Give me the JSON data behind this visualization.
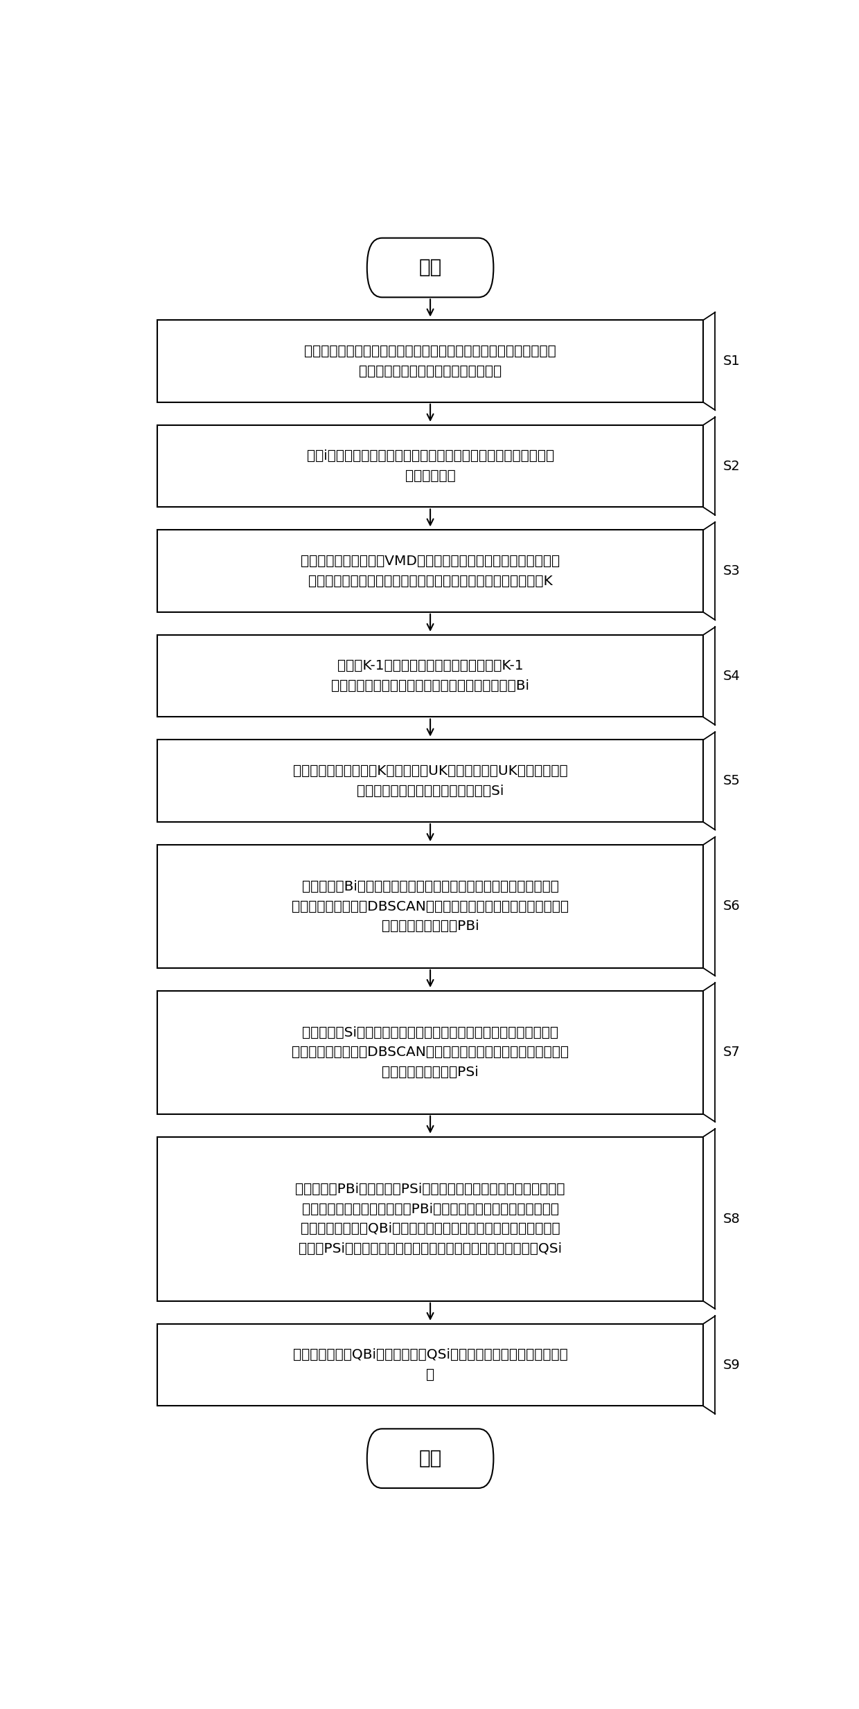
{
  "background_color": "#ffffff",
  "fig_width": 12.4,
  "fig_height": 24.68,
  "dpi": 100,
  "start_text": "开始",
  "end_text": "结束",
  "steps": [
    {
      "tag": "S1",
      "text": "采集机车或动检车的轨道电路的感应信号，依据载频交替规则将其划\n分为多个轨道电路区段的移频感应信号",
      "nlines": 2
    },
    {
      "tag": "S2",
      "text": "对第i个轨道电路区段的移频感应信号进行滑动滤波去噪预处理得到\n去噪后的信号",
      "nlines": 2
    },
    {
      "tag": "S3",
      "text": "采用变分模态滤波分解VMD对去噪后的信号进行自适应分解，得到\n模态分量，并通过信息熵和多维标度法确定信号的最优分解层数K",
      "nlines": 2
    },
    {
      "tag": "S4",
      "text": "计算前K-1层模态分量的峭度值，并根据前K-1\n层模态分量的峭度值计算移频感应信号的波动特征Bi",
      "nlines": 2
    },
    {
      "tag": "S5",
      "text": "选取含有趋势分量的第K层模态分量UK，将模态分量UK运用最小二乘\n法拟合得到移频感应信号的衰减特征Si",
      "nlines": 2
    },
    {
      "tag": "S6",
      "text": "将波动特征Bi添加到移频感应信号对应的轨道电路区段的历史波动特\n征集，采用密度聚类DBSCAN算法计算得到移频感应信号对应的轨道\n电路区段的波动系数PBi",
      "nlines": 3
    },
    {
      "tag": "S7",
      "text": "将衰减特征Si添加到移频感应信号对应的轨道电路区段的历史衰减特\n征集，采用密度聚类DBSCAN算法计算得到移频感应信号对应的轨道\n电路区段的衰减系数PSi",
      "nlines": 3
    },
    {
      "tag": "S8",
      "text": "将波动系数PBi和衰减系数PSi进行归一化处理，通过波动系数评分函\n数和归一化处理后的波动系数PBi计算移频感应信号对应的轨道电路\n区段的波动评分值QBi，通过衰减系数评分函数和归一化处理后的衰\n减系数PSi计算移频感应信号对应的轨道电路区段的衰减评分值QSi",
      "nlines": 4
    },
    {
      "tag": "S9",
      "text": "通过波段评分值QBi和衰减评分值QSi对轨道电路传输特性进行定量评\n价",
      "nlines": 2
    }
  ]
}
